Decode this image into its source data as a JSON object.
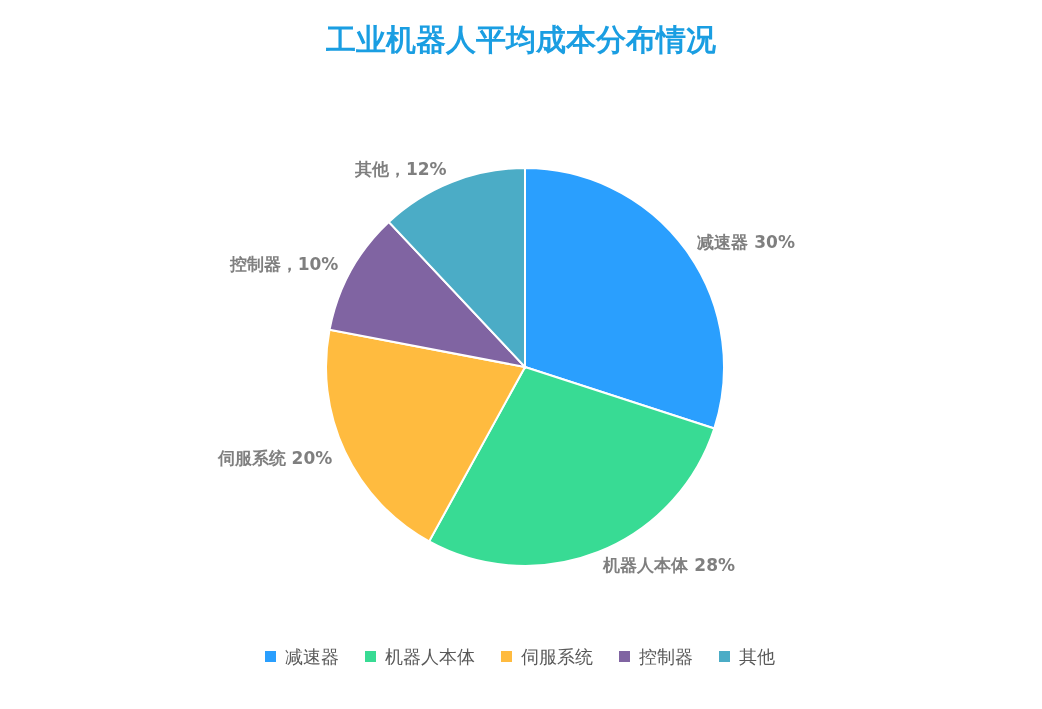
{
  "chart_data": {
    "type": "pie",
    "title": "工业机器人平均成本分布情况",
    "categories": [
      "减速器",
      "机器人本体",
      "伺服系统",
      "控制器",
      "其他"
    ],
    "values": [
      30,
      28,
      20,
      10,
      12
    ],
    "colors": [
      "#2a9ffe",
      "#38db94",
      "#ffbb3f",
      "#8064a2",
      "#4bacc6"
    ],
    "value_labels": [
      "减速器 30%",
      "机器人本体 28%",
      "伺服系统 20%",
      "控制器，10%",
      "其他，12%"
    ],
    "legend": "bottom"
  }
}
